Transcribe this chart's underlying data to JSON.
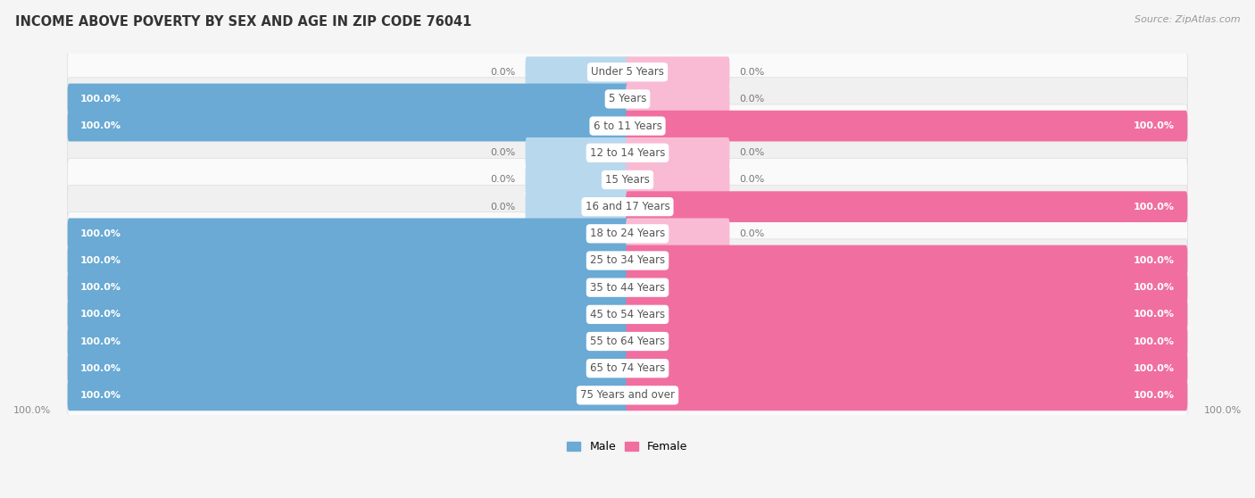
{
  "title": "INCOME ABOVE POVERTY BY SEX AND AGE IN ZIP CODE 76041",
  "source": "Source: ZipAtlas.com",
  "categories": [
    "Under 5 Years",
    "5 Years",
    "6 to 11 Years",
    "12 to 14 Years",
    "15 Years",
    "16 and 17 Years",
    "18 to 24 Years",
    "25 to 34 Years",
    "35 to 44 Years",
    "45 to 54 Years",
    "55 to 64 Years",
    "65 to 74 Years",
    "75 Years and over"
  ],
  "male_values": [
    0.0,
    100.0,
    100.0,
    0.0,
    0.0,
    0.0,
    100.0,
    100.0,
    100.0,
    100.0,
    100.0,
    100.0,
    100.0
  ],
  "female_values": [
    0.0,
    0.0,
    100.0,
    0.0,
    0.0,
    100.0,
    0.0,
    100.0,
    100.0,
    100.0,
    100.0,
    100.0,
    100.0
  ],
  "male_color": "#6aaad4",
  "female_color": "#f06fa0",
  "male_color_light": "#b8d8ee",
  "female_color_light": "#f9bbd4",
  "row_color_odd": "#f0f0f0",
  "row_color_even": "#fafafa",
  "bg_color": "#f5f5f5",
  "title_fontsize": 10.5,
  "label_fontsize": 8.5,
  "value_fontsize": 8,
  "legend_fontsize": 9,
  "source_fontsize": 8,
  "value_color_white": "#ffffff",
  "value_color_dark": "#777777",
  "label_color": "#555555",
  "bottom_value_color": "#888888"
}
